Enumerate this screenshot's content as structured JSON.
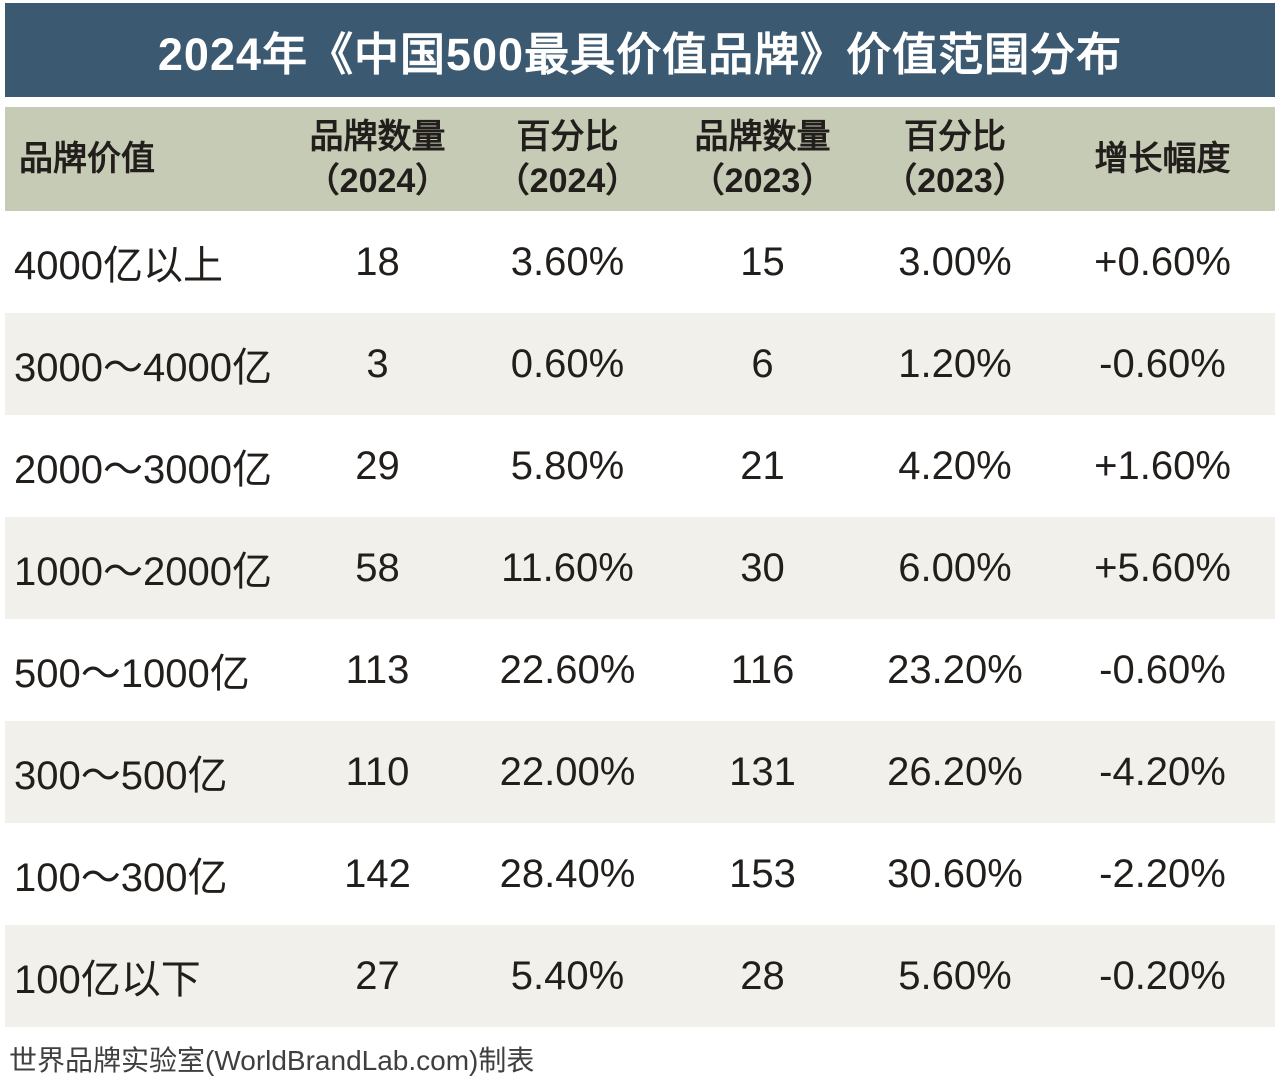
{
  "title": "2024年《中国500最具价值品牌》价值范围分布",
  "table": {
    "columns": [
      {
        "label": "品牌价值"
      },
      {
        "line1": "品牌数量",
        "line2": "（2024）"
      },
      {
        "line1": "百分比",
        "line2": "（2024）"
      },
      {
        "line1": "品牌数量",
        "line2": "（2023）"
      },
      {
        "line1": "百分比",
        "line2": "（2023）"
      },
      {
        "label": "增长幅度"
      }
    ],
    "rows": [
      {
        "range": "4000亿以上",
        "count_2024": "18",
        "pct_2024": "3.60%",
        "count_2023": "15",
        "pct_2023": "3.00%",
        "growth": "+0.60%"
      },
      {
        "range": "3000～4000亿",
        "count_2024": "3",
        "pct_2024": "0.60%",
        "count_2023": "6",
        "pct_2023": "1.20%",
        "growth": "-0.60%"
      },
      {
        "range": "2000～3000亿",
        "count_2024": "29",
        "pct_2024": "5.80%",
        "count_2023": "21",
        "pct_2023": "4.20%",
        "growth": "+1.60%"
      },
      {
        "range": "1000～2000亿",
        "count_2024": "58",
        "pct_2024": "11.60%",
        "count_2023": "30",
        "pct_2023": "6.00%",
        "growth": "+5.60%"
      },
      {
        "range": "500～1000亿",
        "count_2024": "113",
        "pct_2024": "22.60%",
        "count_2023": "116",
        "pct_2023": "23.20%",
        "growth": "-0.60%"
      },
      {
        "range": "300～500亿",
        "count_2024": "110",
        "pct_2024": "22.00%",
        "count_2023": "131",
        "pct_2023": "26.20%",
        "growth": "-4.20%"
      },
      {
        "range": "100～300亿",
        "count_2024": "142",
        "pct_2024": "28.40%",
        "count_2023": "153",
        "pct_2023": "30.60%",
        "growth": "-2.20%"
      },
      {
        "range": "100亿以下",
        "count_2024": "27",
        "pct_2024": "5.40%",
        "count_2023": "28",
        "pct_2023": "5.60%",
        "growth": "-0.20%"
      }
    ]
  },
  "footer": {
    "source": "世界品牌实验室(WorldBrandLab.com)制表"
  },
  "colors": {
    "title_bar_bg": "#3c5972",
    "title_text": "#ffffff",
    "header_bg": "#c6cbb5",
    "row_alt_bg": "#f1f0ea",
    "body_text": "#221e1b",
    "footer_text": "#3f3f3f"
  },
  "chart_data": {
    "type": "table",
    "title": "2024年《中国500最具价值品牌》价值范围分布",
    "columns": [
      "品牌价值",
      "品牌数量（2024）",
      "百分比（2024）",
      "品牌数量（2023）",
      "百分比（2023）",
      "增长幅度"
    ],
    "rows": [
      [
        "4000亿以上",
        18,
        "3.60%",
        15,
        "3.00%",
        "+0.60%"
      ],
      [
        "3000～4000亿",
        3,
        "0.60%",
        6,
        "1.20%",
        "-0.60%"
      ],
      [
        "2000～3000亿",
        29,
        "5.80%",
        21,
        "4.20%",
        "+1.60%"
      ],
      [
        "1000～2000亿",
        58,
        "11.60%",
        30,
        "6.00%",
        "+5.60%"
      ],
      [
        "500～1000亿",
        113,
        "22.60%",
        116,
        "23.20%",
        "-0.60%"
      ],
      [
        "300～500亿",
        110,
        "22.00%",
        131,
        "26.20%",
        "-4.20%"
      ],
      [
        "100～300亿",
        142,
        "28.40%",
        153,
        "30.60%",
        "-2.20%"
      ],
      [
        "100亿以下",
        27,
        "5.40%",
        28,
        "5.60%",
        "-0.20%"
      ]
    ],
    "source": "世界品牌实验室(WorldBrandLab.com)制表"
  }
}
